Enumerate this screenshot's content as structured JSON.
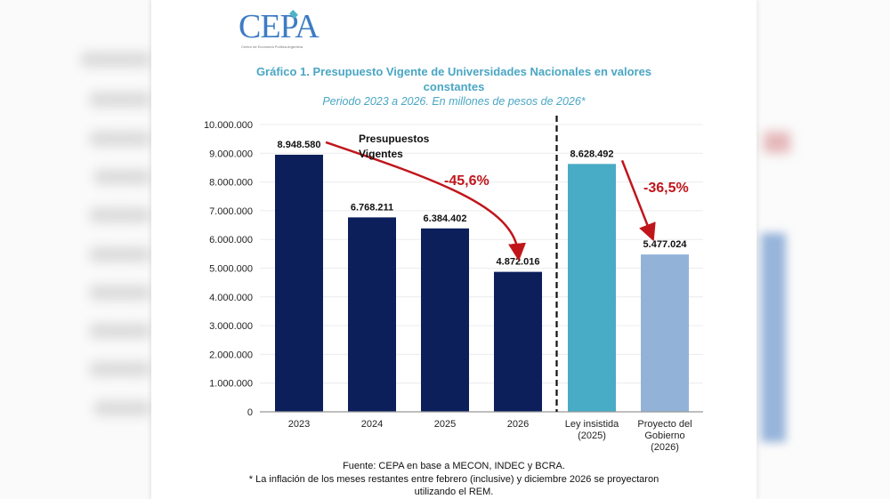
{
  "logo": {
    "text": "CEPA",
    "subtitle": "Centro de Economía Política Argentina"
  },
  "title_line1": "Gráfico 1. Presupuesto Vigente de Universidades Nacionales en valores",
  "title_line2": "constantes",
  "subtitle": "Periodo 2023 a 2026. En millones de pesos de 2026*",
  "footer": {
    "source": "Fuente: CEPA en base a MECON, INDEC y BCRA.",
    "note_line1": "* La inflación de los meses restantes entre febrero (inclusive) y diciembre 2026 se proyectaron",
    "note_line2": "utilizando el REM."
  },
  "colors": {
    "dark_navy": "#0c1f5b",
    "teal": "#49acc6",
    "light_blue": "#93b2d8",
    "arrow_red": "#c0161b",
    "title": "#4aa6c4"
  },
  "chart_data": {
    "type": "bar",
    "title": "Gráfico 1. Presupuesto Vigente de Universidades Nacionales en valores constantes",
    "subtitle": "Periodo 2023 a 2026. En millones de pesos de 2026*",
    "categories": [
      "2023",
      "2024",
      "2025",
      "2026",
      "Ley insistida (2025)",
      "Proyecto del Gobierno (2026)"
    ],
    "category_lines": [
      [
        "2023"
      ],
      [
        "2024"
      ],
      [
        "2025"
      ],
      [
        "2026"
      ],
      [
        "Ley insistida",
        "(2025)"
      ],
      [
        "Proyecto del",
        "Gobierno",
        "(2026)"
      ]
    ],
    "values": [
      8948580,
      6768211,
      6384402,
      4872016,
      8628492,
      5477024
    ],
    "value_labels": [
      "8.948.580",
      "6.768.211",
      "6.384.402",
      "4.872.016",
      "8.628.492",
      "5.477.024"
    ],
    "bar_colors": [
      "#0c1f5b",
      "#0c1f5b",
      "#0c1f5b",
      "#0c1f5b",
      "#49acc6",
      "#93b2d8"
    ],
    "ylim": [
      0,
      10000000
    ],
    "yticks": [
      0,
      1000000,
      2000000,
      3000000,
      4000000,
      5000000,
      6000000,
      7000000,
      8000000,
      9000000,
      10000000
    ],
    "ytick_labels": [
      "0",
      "1.000.000",
      "2.000.000",
      "3.000.000",
      "4.000.000",
      "5.000.000",
      "6.000.000",
      "7.000.000",
      "8.000.000",
      "9.000.000",
      "10.000.000"
    ],
    "grid": true,
    "xlabel": "",
    "ylabel": "",
    "annotations": [
      {
        "text": "Presupuestos",
        "text2": "Vigentes"
      },
      {
        "text": "-45,6%",
        "from": "2023",
        "to": "2026"
      },
      {
        "text": "-36,5%",
        "from": "Ley insistida (2025)",
        "to": "Proyecto del Gobierno (2026)"
      }
    ],
    "separator": "dashed vertical line between 2026 and Ley insistida (2025)"
  }
}
